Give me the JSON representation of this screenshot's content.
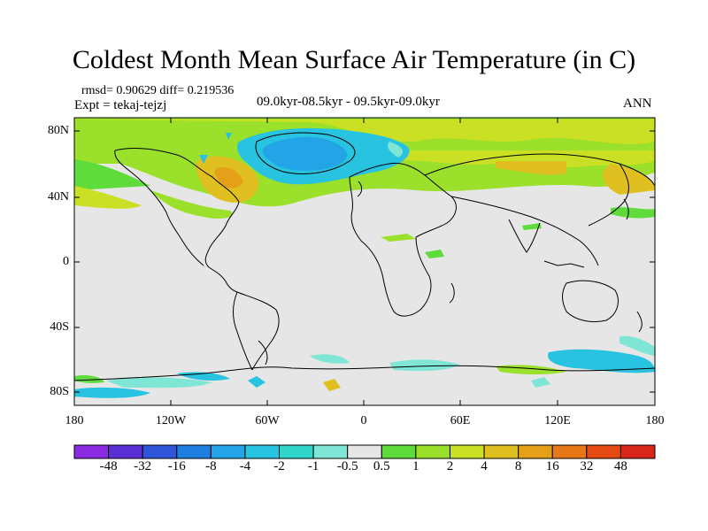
{
  "title": "Coldest Month Mean Surface Air Temperature (in C)",
  "stats": "rmsd= 0.90629  diff= 0.219536",
  "experiment": "Expt = tekaj-tejzj",
  "period": "09.0kyr-08.5kyr - 09.5kyr-09.0kyr",
  "season": "ANN",
  "lat_ticks": [
    "80N",
    "40N",
    "0",
    "40S",
    "80S"
  ],
  "lon_ticks": [
    "180",
    "120W",
    "60W",
    "0",
    "60E",
    "120E",
    "180"
  ],
  "colorbar": {
    "labels": [
      "-48",
      "-32",
      "-16",
      "-8",
      "-4",
      "-2",
      "-1",
      "-0.5",
      "0.5",
      "1",
      "2",
      "4",
      "8",
      "16",
      "32",
      "48"
    ],
    "colors": [
      "#8a2be2",
      "#5b2fd6",
      "#2f55d8",
      "#1e7fe0",
      "#22a4e6",
      "#27c3e0",
      "#2fd5c8",
      "#7fe6d6",
      "#e6e6e6",
      "#5fdc3c",
      "#9be02a",
      "#c9e024",
      "#e0c020",
      "#e3a018",
      "#e77818",
      "#e44a12",
      "#d8261a"
    ]
  },
  "colors": {
    "ocean_neutral": "#e6e6e6",
    "coast": "#000000"
  }
}
